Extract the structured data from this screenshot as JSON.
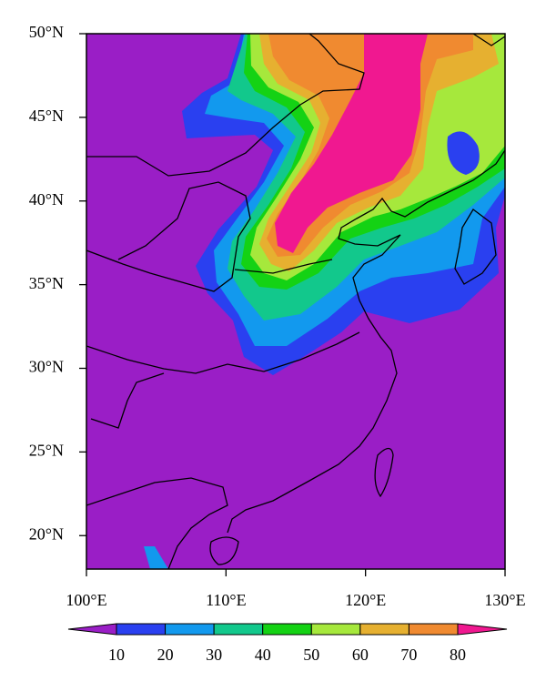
{
  "map": {
    "lon_range": [
      100,
      130
    ],
    "lat_range": [
      18,
      50
    ],
    "lon_ticks": [
      {
        "value": 100,
        "label": "100°E"
      },
      {
        "value": 110,
        "label": "110°E"
      },
      {
        "value": 120,
        "label": "120°E"
      },
      {
        "value": 130,
        "label": "130°E"
      }
    ],
    "lat_ticks": [
      {
        "value": 20,
        "label": "20°N"
      },
      {
        "value": 25,
        "label": "25°N"
      },
      {
        "value": 30,
        "label": "30°N"
      },
      {
        "value": 35,
        "label": "35°N"
      },
      {
        "value": 40,
        "label": "40°N"
      },
      {
        "value": 45,
        "label": "45°N"
      },
      {
        "value": 50,
        "label": "50°N"
      }
    ],
    "colorbar": {
      "levels": [
        10,
        20,
        30,
        40,
        50,
        60,
        70,
        80
      ],
      "colors": [
        "#9a1ec6",
        "#2a40f0",
        "#1299ee",
        "#12c88c",
        "#14d214",
        "#a6e83c",
        "#e6b030",
        "#f08a30",
        "#f01890"
      ]
    }
  }
}
